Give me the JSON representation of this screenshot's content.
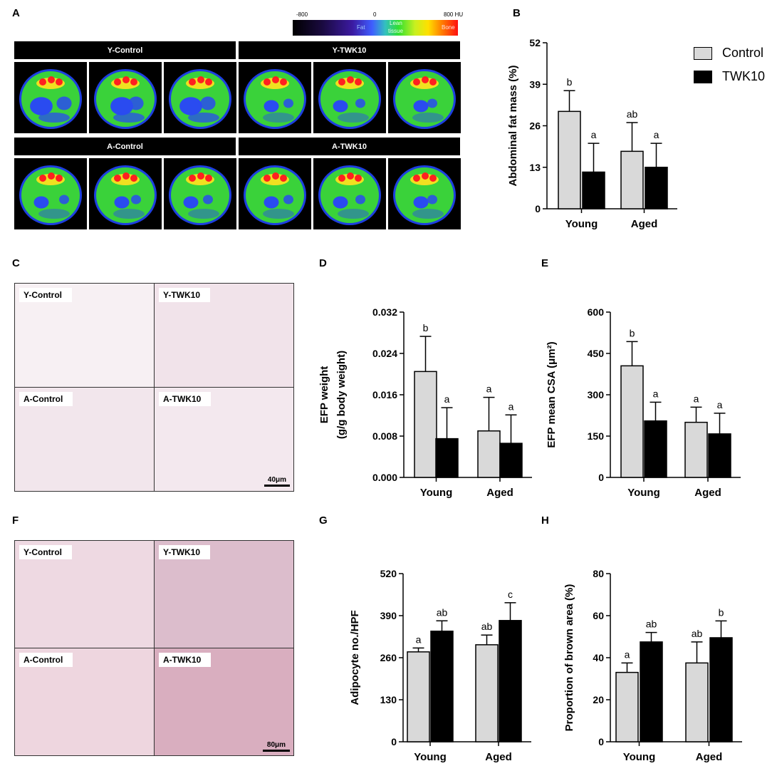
{
  "panels": {
    "A": "A",
    "B": "B",
    "C": "C",
    "D": "D",
    "E": "E",
    "F": "F",
    "G": "G",
    "H": "H"
  },
  "colorbar": {
    "ticks": [
      "-800",
      "0",
      "800 HU"
    ],
    "labels": [
      "Fat",
      "Lean",
      "tissue",
      "Bone"
    ]
  },
  "ct_groups": [
    "Y-Control",
    "Y-TWK10",
    "A-Control",
    "A-TWK10"
  ],
  "histo_c": {
    "labels": [
      "Y-Control",
      "Y-TWK10",
      "A-Control",
      "A-TWK10"
    ],
    "scale": "40μm"
  },
  "histo_f": {
    "labels": [
      "Y-Control",
      "Y-TWK10",
      "A-Control",
      "A-TWK10"
    ],
    "scale": "80μm"
  },
  "legend": {
    "items": [
      {
        "name": "Control",
        "color": "#d9d9d9"
      },
      {
        "name": "TWK10",
        "color": "#000000"
      }
    ]
  },
  "chart_data": [
    {
      "id": "B",
      "type": "bar",
      "ylabel": "Abdominal fat mass (%)",
      "categories": [
        "Young",
        "Aged"
      ],
      "ylim": [
        0,
        52
      ],
      "yticks": [
        "0",
        "13",
        "26",
        "39",
        "52"
      ],
      "series": [
        {
          "name": "Control",
          "values": [
            30.5,
            18.0
          ],
          "errors": [
            6.5,
            9.0
          ],
          "letters": [
            "b",
            "ab"
          ]
        },
        {
          "name": "TWK10",
          "values": [
            11.5,
            13.0
          ],
          "errors": [
            9.0,
            7.5
          ],
          "letters": [
            "a",
            "a"
          ]
        }
      ]
    },
    {
      "id": "D",
      "type": "bar",
      "ylabel": [
        "EFP weight",
        "(g/g body weight)"
      ],
      "categories": [
        "Young",
        "Aged"
      ],
      "ylim": [
        0,
        0.032
      ],
      "yticks": [
        "0.000",
        "0.008",
        "0.016",
        "0.024",
        "0.032"
      ],
      "series": [
        {
          "name": "Control",
          "values": [
            0.0205,
            0.009
          ],
          "errors": [
            0.0068,
            0.0065
          ],
          "letters": [
            "b",
            "a"
          ]
        },
        {
          "name": "TWK10",
          "values": [
            0.0075,
            0.0066
          ],
          "errors": [
            0.006,
            0.0055
          ],
          "letters": [
            "a",
            "a"
          ]
        }
      ]
    },
    {
      "id": "E",
      "type": "bar",
      "ylabel": "EFP mean CSA (μm²)",
      "categories": [
        "Young",
        "Aged"
      ],
      "ylim": [
        0,
        600
      ],
      "yticks": [
        "0",
        "150",
        "300",
        "450",
        "600"
      ],
      "series": [
        {
          "name": "Control",
          "values": [
            405,
            200
          ],
          "errors": [
            88,
            55
          ],
          "letters": [
            "b",
            "a"
          ]
        },
        {
          "name": "TWK10",
          "values": [
            205,
            158
          ],
          "errors": [
            68,
            75
          ],
          "letters": [
            "a",
            "a"
          ]
        }
      ]
    },
    {
      "id": "G",
      "type": "bar",
      "ylabel": "Adipocyte no./HPF",
      "categories": [
        "Young",
        "Aged"
      ],
      "ylim": [
        0,
        520
      ],
      "yticks": [
        "0",
        "130",
        "260",
        "390",
        "520"
      ],
      "series": [
        {
          "name": "Control",
          "values": [
            278,
            300
          ],
          "errors": [
            12,
            30
          ],
          "letters": [
            "a",
            "ab"
          ]
        },
        {
          "name": "TWK10",
          "values": [
            342,
            375
          ],
          "errors": [
            32,
            55
          ],
          "letters": [
            "ab",
            "c"
          ]
        }
      ]
    },
    {
      "id": "H",
      "type": "bar",
      "ylabel": "Proportion of brown area (%)",
      "categories": [
        "Young",
        "Aged"
      ],
      "ylim": [
        0,
        80
      ],
      "yticks": [
        "0",
        "20",
        "40",
        "60",
        "80"
      ],
      "series": [
        {
          "name": "Control",
          "values": [
            33,
            37.5
          ],
          "errors": [
            4.5,
            10
          ],
          "letters": [
            "a",
            "ab"
          ]
        },
        {
          "name": "TWK10",
          "values": [
            47.5,
            49.5
          ],
          "errors": [
            4.5,
            8
          ],
          "letters": [
            "ab",
            "b"
          ]
        }
      ]
    }
  ]
}
